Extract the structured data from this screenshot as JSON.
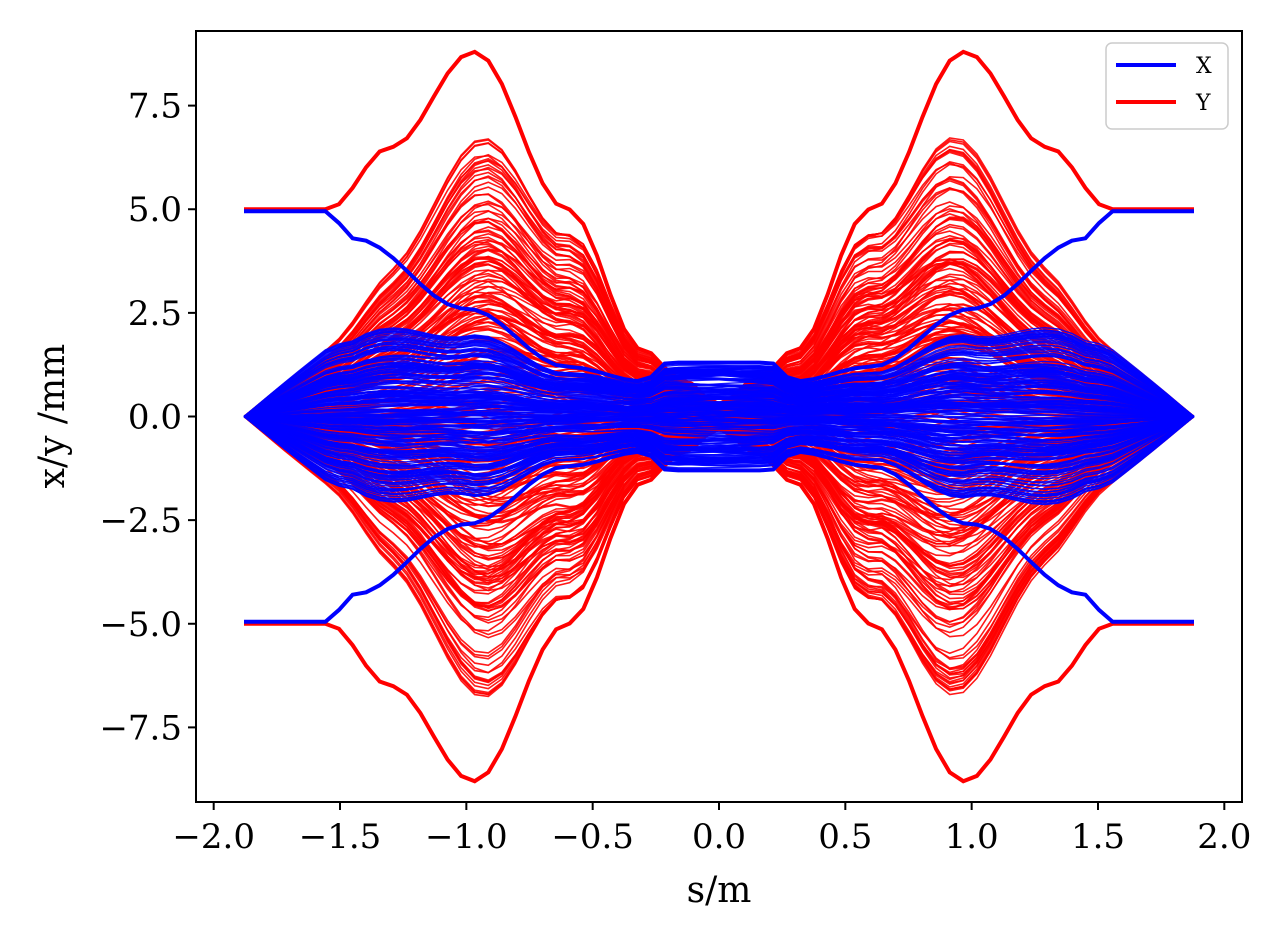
{
  "chart_data": {
    "type": "line",
    "title": "",
    "xlabel": "s/m",
    "ylabel": "x/y /mm",
    "xlim": [
      -2.07,
      2.07
    ],
    "ylim": [
      -9.3,
      9.3
    ],
    "xticks": [
      -2.0,
      -1.5,
      -1.0,
      -0.5,
      0.0,
      0.5,
      1.0,
      1.5,
      2.0
    ],
    "xtick_labels": [
      "−2.0",
      "−1.5",
      "−1.0",
      "−0.5",
      "0.0",
      "0.5",
      "1.0",
      "1.5",
      "2.0"
    ],
    "yticks": [
      7.5,
      5.0,
      2.5,
      0.0,
      -2.5,
      -5.0,
      -7.5
    ],
    "ytick_labels": [
      "7.5",
      "5.0",
      "2.5",
      "0.0",
      "−2.5",
      "−5.0",
      "−7.5"
    ],
    "grid": false,
    "legend_position": "top-right",
    "series": [
      {
        "name": "X",
        "color": "#0000ff",
        "envelope": {
          "s": [
            -1.88,
            -1.55,
            -1.45,
            -1.0,
            -0.6,
            -0.3,
            -0.2,
            0.0,
            0.2,
            0.3,
            0.6,
            1.0,
            1.45,
            1.55,
            1.88
          ],
          "upper": [
            4.95,
            4.95,
            4.3,
            2.6,
            1.2,
            0.85,
            1.3,
            1.3,
            1.3,
            0.85,
            1.2,
            2.6,
            4.3,
            4.95,
            4.95
          ]
        }
      },
      {
        "name": "Y",
        "color": "#ff0000",
        "envelope": {
          "s": [
            -1.88,
            -1.55,
            -1.3,
            -0.97,
            -0.6,
            -0.3,
            -0.15,
            0.0,
            0.15,
            0.3,
            0.6,
            0.97,
            1.3,
            1.55,
            1.88
          ],
          "upper": [
            5.0,
            5.0,
            6.5,
            8.8,
            5.0,
            1.6,
            0.9,
            0.3,
            0.9,
            1.6,
            5.0,
            8.8,
            6.5,
            5.0,
            5.0
          ]
        }
      }
    ]
  }
}
